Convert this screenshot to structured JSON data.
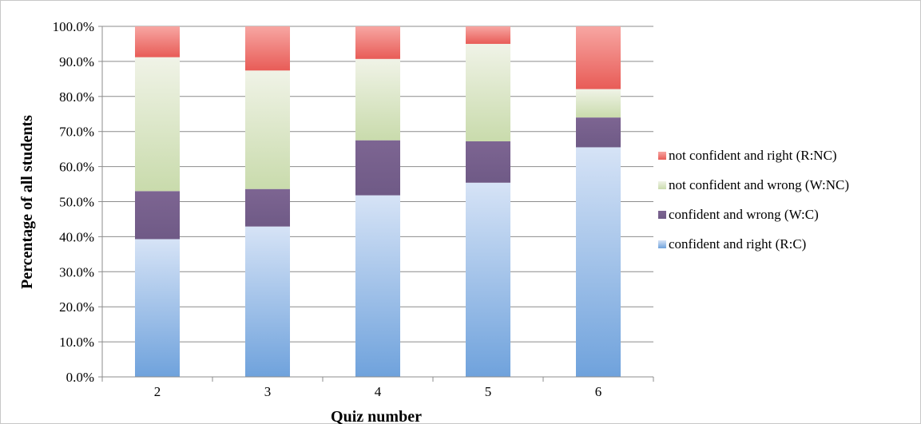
{
  "chart_data": {
    "type": "bar",
    "stacked": true,
    "xlabel": "Quiz number",
    "ylabel": "Percentage of all students",
    "categories": [
      "2",
      "3",
      "4",
      "5",
      "6"
    ],
    "ylim": [
      0,
      100
    ],
    "yticks": [
      "0.0%",
      "10.0%",
      "20.0%",
      "30.0%",
      "40.0%",
      "50.0%",
      "60.0%",
      "70.0%",
      "80.0%",
      "90.0%",
      "100.0%"
    ],
    "grid": true,
    "legend_position": "right",
    "series": [
      {
        "name": "confident and right (R:C)",
        "values": [
          39.3,
          42.9,
          51.8,
          55.4,
          65.5
        ],
        "color_top": "#d6e3f6",
        "color_bottom": "#6fa2dc"
      },
      {
        "name": "confident and wrong (W:C)",
        "values": [
          13.7,
          10.7,
          15.7,
          11.8,
          8.5
        ],
        "color_top": "#7d6592",
        "color_bottom": "#6f5a86"
      },
      {
        "name": "not confident and wrong (W:NC)",
        "values": [
          38.2,
          33.8,
          23.2,
          27.8,
          8.1
        ],
        "color_top": "#f0f3e7",
        "color_bottom": "#c9dbac"
      },
      {
        "name": "not confident and right (R:NC)",
        "values": [
          8.8,
          12.6,
          9.3,
          5.0,
          17.9
        ],
        "color_top": "#f7a6a2",
        "color_bottom": "#e85c57"
      }
    ]
  }
}
